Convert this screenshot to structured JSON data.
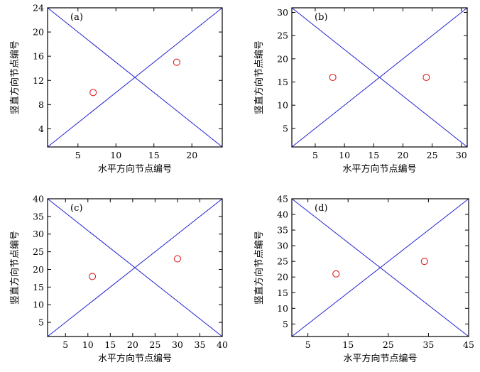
{
  "figure": {
    "xlabel": "水平方向节点编号",
    "ylabel": "竖直方向节点编号"
  },
  "colors": {
    "lines": "#2020d0",
    "points": "#e02020",
    "axes": "#000000"
  },
  "chart_data": [
    {
      "type": "scatter",
      "panel_label": "(a)",
      "xlabel": "水平方向节点编号",
      "ylabel": "竖直方向节点编号",
      "xlim": [
        1,
        24
      ],
      "ylim": [
        1,
        24
      ],
      "xticks": [
        5,
        10,
        15,
        20
      ],
      "yticks": [
        4,
        8,
        12,
        16,
        20,
        24
      ],
      "diagonals": [
        [
          [
            1,
            1
          ],
          [
            24,
            24
          ]
        ],
        [
          [
            1,
            24
          ],
          [
            24,
            1
          ]
        ]
      ],
      "points": [
        {
          "x": 7,
          "y": 10
        },
        {
          "x": 18,
          "y": 15
        }
      ]
    },
    {
      "type": "scatter",
      "panel_label": "(b)",
      "xlabel": "水平方向节点编号",
      "ylabel": "竖直方向节点编号",
      "xlim": [
        1,
        31
      ],
      "ylim": [
        1,
        31
      ],
      "xticks": [
        5,
        10,
        15,
        20,
        25,
        30
      ],
      "yticks": [
        5,
        10,
        15,
        20,
        25,
        30
      ],
      "diagonals": [
        [
          [
            1,
            1
          ],
          [
            31,
            31
          ]
        ],
        [
          [
            1,
            31
          ],
          [
            31,
            1
          ]
        ]
      ],
      "points": [
        {
          "x": 8,
          "y": 16
        },
        {
          "x": 24,
          "y": 16
        }
      ]
    },
    {
      "type": "scatter",
      "panel_label": "(c)",
      "xlabel": "水平方向节点编号",
      "ylabel": "竖直方向节点编号",
      "xlim": [
        1,
        40
      ],
      "ylim": [
        1,
        40
      ],
      "xticks": [
        5,
        10,
        15,
        20,
        25,
        30,
        35,
        40
      ],
      "yticks": [
        5,
        10,
        15,
        20,
        25,
        30,
        35,
        40
      ],
      "diagonals": [
        [
          [
            1,
            1
          ],
          [
            40,
            40
          ]
        ],
        [
          [
            1,
            40
          ],
          [
            40,
            1
          ]
        ]
      ],
      "points": [
        {
          "x": 11,
          "y": 18
        },
        {
          "x": 30,
          "y": 23
        }
      ]
    },
    {
      "type": "scatter",
      "panel_label": "(d)",
      "xlabel": "水平方向节点编号",
      "ylabel": "竖直方向节点编号",
      "xlim": [
        1,
        45
      ],
      "ylim": [
        1,
        45
      ],
      "xticks": [
        5,
        15,
        25,
        35,
        45
      ],
      "yticks": [
        5,
        10,
        15,
        20,
        25,
        30,
        35,
        40,
        45
      ],
      "diagonals": [
        [
          [
            1,
            1
          ],
          [
            45,
            45
          ]
        ],
        [
          [
            1,
            45
          ],
          [
            45,
            1
          ]
        ]
      ],
      "points": [
        {
          "x": 12,
          "y": 21
        },
        {
          "x": 34,
          "y": 25
        }
      ]
    }
  ]
}
